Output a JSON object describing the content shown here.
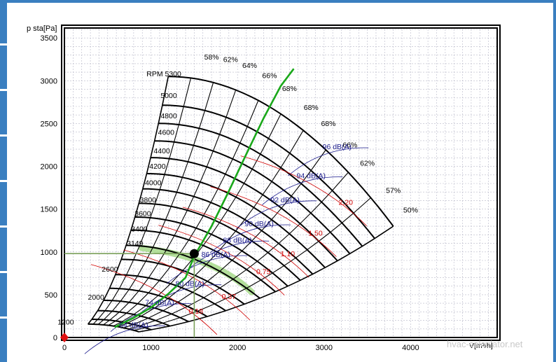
{
  "colors": {
    "frame": "#000000",
    "grid": "#b8b8c8",
    "rpm_curve": "#000000",
    "efficiency_curve": "#000000",
    "noise_curve": "#1a1a8c",
    "power_curve": "#d00000",
    "system_curve": "#1aa81a",
    "system_band": "#a6d98a",
    "operating_line": "#7aa05a",
    "operating_point": "#000000",
    "origin_marker": "#e01010",
    "side_accent": "#3a7fc0"
  },
  "watermark": "hvac-calculator.net",
  "chart_data": {
    "type": "line",
    "xlabel": "V[m³/h]",
    "ylabel": "p sta[Pa]",
    "xlim": [
      0,
      5000
    ],
    "ylim": [
      0,
      3600
    ],
    "xticks": [
      0,
      1000,
      2000,
      3000,
      4000
    ],
    "yticks": [
      0,
      500,
      1000,
      1500,
      2000,
      2500,
      3000,
      3500
    ],
    "grid": true,
    "rpm_prefix": "RPM",
    "rpm_curves": [
      {
        "label": "5300",
        "rpm": 5300
      },
      {
        "label": "5000",
        "rpm": 5000
      },
      {
        "label": "4800",
        "rpm": 4800
      },
      {
        "label": "4600",
        "rpm": 4600
      },
      {
        "label": "4400",
        "rpm": 4400
      },
      {
        "label": "4200",
        "rpm": 4200
      },
      {
        "label": "4000",
        "rpm": 4000
      },
      {
        "label": "3800",
        "rpm": 3800
      },
      {
        "label": "3600",
        "rpm": 3600
      },
      {
        "label": "3400",
        "rpm": 3400
      },
      {
        "label": "3149",
        "rpm": 3149
      },
      {
        "label": "2600",
        "rpm": 2600
      },
      {
        "label": "2000",
        "rpm": 2000
      },
      {
        "label": "1200",
        "rpm": 1200
      }
    ],
    "efficiency_labels": [
      "58%",
      "62%",
      "64%",
      "66%",
      "68%",
      "68%",
      "68%",
      "66%",
      "62%",
      "57%",
      "50%"
    ],
    "noise_labels": [
      {
        "label": "96 dB(A)",
        "x": 3150,
        "y": 2200
      },
      {
        "label": "94 dB(A)",
        "x": 2850,
        "y": 1860
      },
      {
        "label": "92 dB(A)",
        "x": 2550,
        "y": 1580
      },
      {
        "label": "90 dB(A)",
        "x": 2250,
        "y": 1300
      },
      {
        "label": "88 dB(A)",
        "x": 2000,
        "y": 1110
      },
      {
        "label": "86 dB(A)",
        "x": 1750,
        "y": 940
      },
      {
        "label": "80 dB(A)",
        "x": 1450,
        "y": 600
      },
      {
        "label": "74 dB(A)",
        "x": 1100,
        "y": 380
      },
      {
        "label": "64 dB(A)",
        "x": 800,
        "y": 120
      }
    ],
    "power_labels": [
      {
        "label": "2.20",
        "x": 3250,
        "y": 1550
      },
      {
        "label": "1.50",
        "x": 2900,
        "y": 1190
      },
      {
        "label": "1.10",
        "x": 2580,
        "y": 950
      },
      {
        "label": "0.75",
        "x": 2300,
        "y": 740
      },
      {
        "label": "0.37",
        "x": 1900,
        "y": 450
      },
      {
        "label": "0.18",
        "x": 1520,
        "y": 280
      }
    ],
    "system_curve": {
      "name": "",
      "x": [
        580,
        800,
        1000,
        1200,
        1400,
        1500,
        1700,
        1900,
        2100,
        2300,
        2500,
        2650
      ],
      "y": [
        120,
        230,
        350,
        510,
        700,
        950,
        1300,
        1710,
        2140,
        2560,
        2940,
        3140
      ]
    },
    "operating_point": {
      "x": 1500,
      "y": 980
    }
  }
}
